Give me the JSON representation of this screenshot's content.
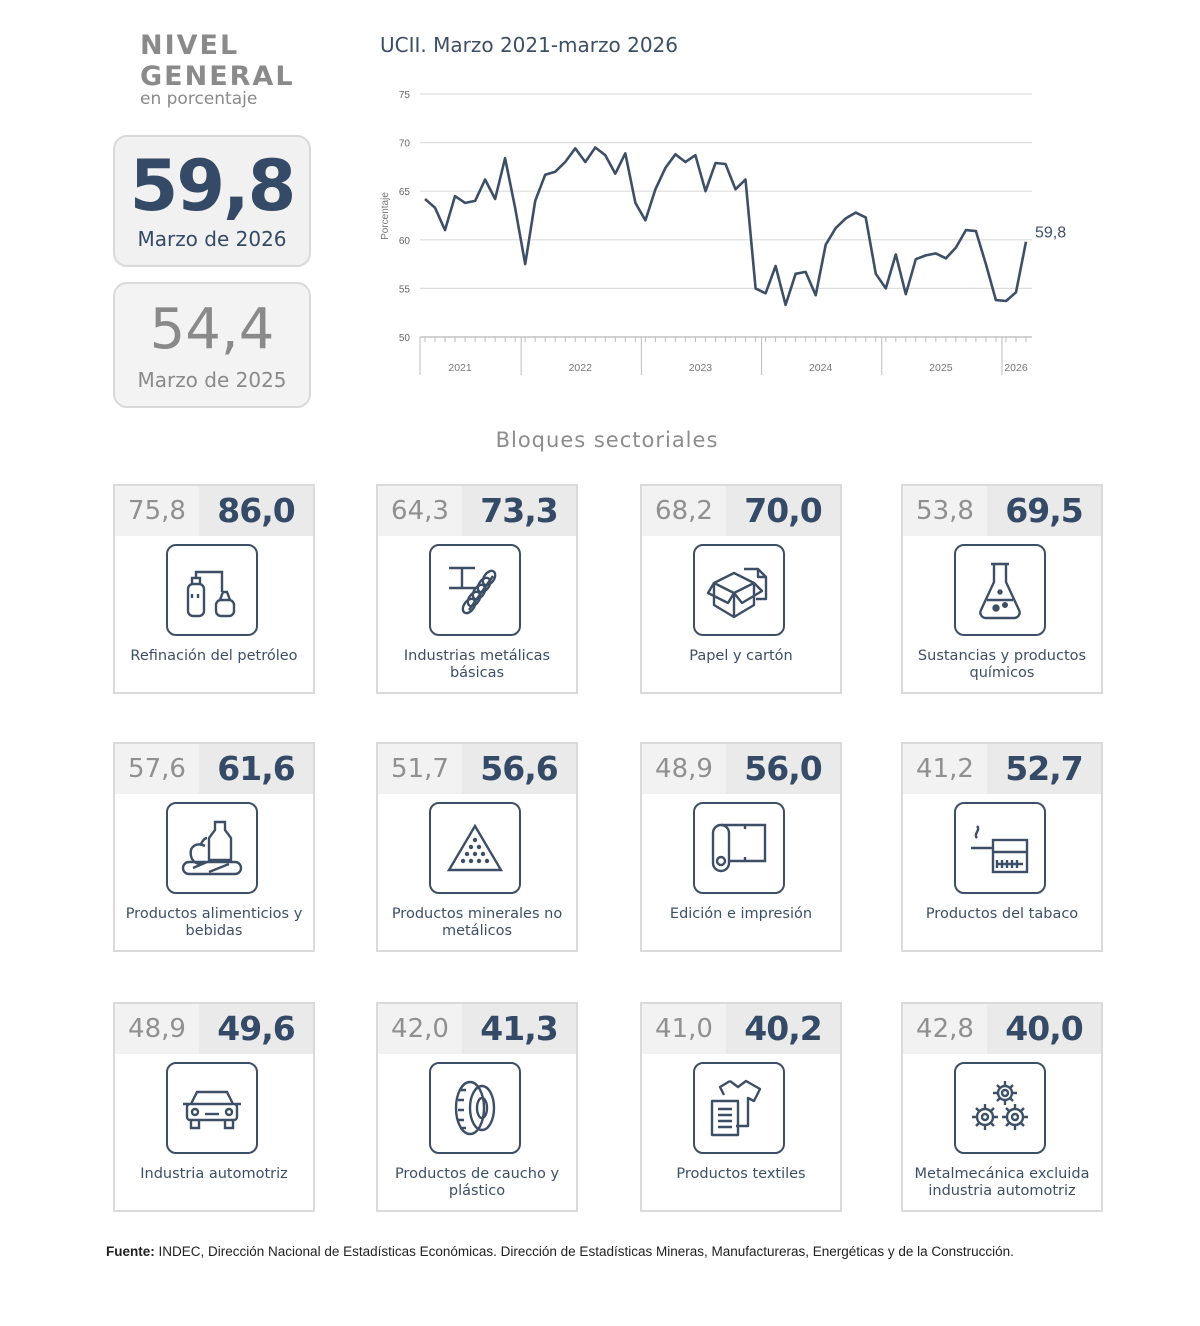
{
  "header": {
    "title_line1": "Nivel",
    "title_line2": "General",
    "subtitle": "en porcentaje"
  },
  "kpi": {
    "current_value": "59,8",
    "current_label": "Marzo de 2026",
    "previous_value": "54,4",
    "previous_label": "Marzo de 2025"
  },
  "chart_data": {
    "type": "line",
    "title": "UCII. Marzo 2021-marzo 2026",
    "ylabel": "Porcentaje",
    "xlabel": "",
    "ylim": [
      50,
      75
    ],
    "yticks": [
      50,
      55,
      60,
      65,
      70,
      75
    ],
    "x_tick_labels": [
      "2021",
      "2022",
      "2023",
      "2024",
      "2025",
      "2026"
    ],
    "end_label": "59,8",
    "line_color": "#3d4f66",
    "grid": true,
    "series": [
      {
        "x": [
          "2021-03",
          "2021-04",
          "2021-05",
          "2021-06",
          "2021-07",
          "2021-08",
          "2021-09",
          "2021-10",
          "2021-11",
          "2021-12",
          "2022-01",
          "2022-02",
          "2022-03",
          "2022-04",
          "2022-05",
          "2022-06",
          "2022-07",
          "2022-08",
          "2022-09",
          "2022-10",
          "2022-11",
          "2022-12",
          "2023-01",
          "2023-02",
          "2023-03",
          "2023-04",
          "2023-05",
          "2023-06",
          "2023-07",
          "2023-08",
          "2023-09",
          "2023-10",
          "2023-11",
          "2023-12",
          "2024-01",
          "2024-02",
          "2024-03",
          "2024-04",
          "2024-05",
          "2024-06",
          "2024-07",
          "2024-08",
          "2024-09",
          "2024-10",
          "2024-11",
          "2024-12",
          "2025-01",
          "2025-02",
          "2025-03",
          "2025-04",
          "2025-05",
          "2025-06",
          "2025-07",
          "2025-08",
          "2025-09",
          "2025-10",
          "2025-11",
          "2025-12",
          "2026-01",
          "2026-02",
          "2026-03"
        ],
        "values": [
          64.2,
          63.3,
          61.0,
          64.5,
          63.8,
          64.0,
          66.2,
          64.2,
          68.4,
          63.3,
          57.5,
          64.0,
          66.7,
          67.0,
          68.0,
          69.4,
          68.0,
          69.5,
          68.7,
          66.8,
          68.9,
          63.8,
          62.0,
          65.2,
          67.4,
          68.8,
          68.0,
          68.7,
          65.0,
          67.9,
          67.8,
          65.2,
          66.2,
          55.0,
          54.5,
          57.3,
          53.3,
          56.5,
          56.7,
          54.3,
          59.5,
          61.2,
          62.2,
          62.8,
          62.3,
          56.5,
          55.0,
          58.5,
          54.4,
          58.0,
          58.4,
          58.6,
          58.1,
          59.2,
          61.0,
          60.9,
          57.5,
          53.8,
          53.7,
          54.6,
          59.8
        ]
      }
    ]
  },
  "sectors_title": "Bloques sectoriales",
  "sectors": [
    {
      "prev": "75,8",
      "cur": "86,0",
      "label": "Refinación del petróleo",
      "icon": "refinery-icon"
    },
    {
      "prev": "64,3",
      "cur": "73,3",
      "label": "Industrias metálicas básicas",
      "icon": "metal-beam-icon"
    },
    {
      "prev": "68,2",
      "cur": "70,0",
      "label": "Papel y cartón",
      "icon": "cardboard-box-icon"
    },
    {
      "prev": "53,8",
      "cur": "69,5",
      "label": "Sustancias y productos químicos",
      "icon": "flask-icon"
    },
    {
      "prev": "57,6",
      "cur": "61,6",
      "label": "Productos alimenticios y bebidas",
      "icon": "food-bottle-icon"
    },
    {
      "prev": "51,7",
      "cur": "56,6",
      "label": "Productos minerales no metálicos",
      "icon": "mineral-triangle-icon"
    },
    {
      "prev": "48,9",
      "cur": "56,0",
      "label": "Edición e impresión",
      "icon": "paper-roll-icon"
    },
    {
      "prev": "41,2",
      "cur": "52,7",
      "label": "Productos del tabaco",
      "icon": "cigarette-box-icon"
    },
    {
      "prev": "48,9",
      "cur": "49,6",
      "label": "Industria automotriz",
      "icon": "car-icon"
    },
    {
      "prev": "42,0",
      "cur": "41,3",
      "label": "Productos de caucho y plástico",
      "icon": "tire-icon"
    },
    {
      "prev": "41,0",
      "cur": "40,2",
      "label": "Productos textiles",
      "icon": "tshirt-icon"
    },
    {
      "prev": "42,8",
      "cur": "40,0",
      "label": "Metalmecánica excluida industria automotriz",
      "icon": "gears-icon"
    }
  ],
  "source": {
    "label": "Fuente:",
    "text": "INDEC, Dirección Nacional de Estadísticas Económicas. Dirección de Estadísticas Mineras, Manufactureras, Energéticas y de la Construcción."
  }
}
